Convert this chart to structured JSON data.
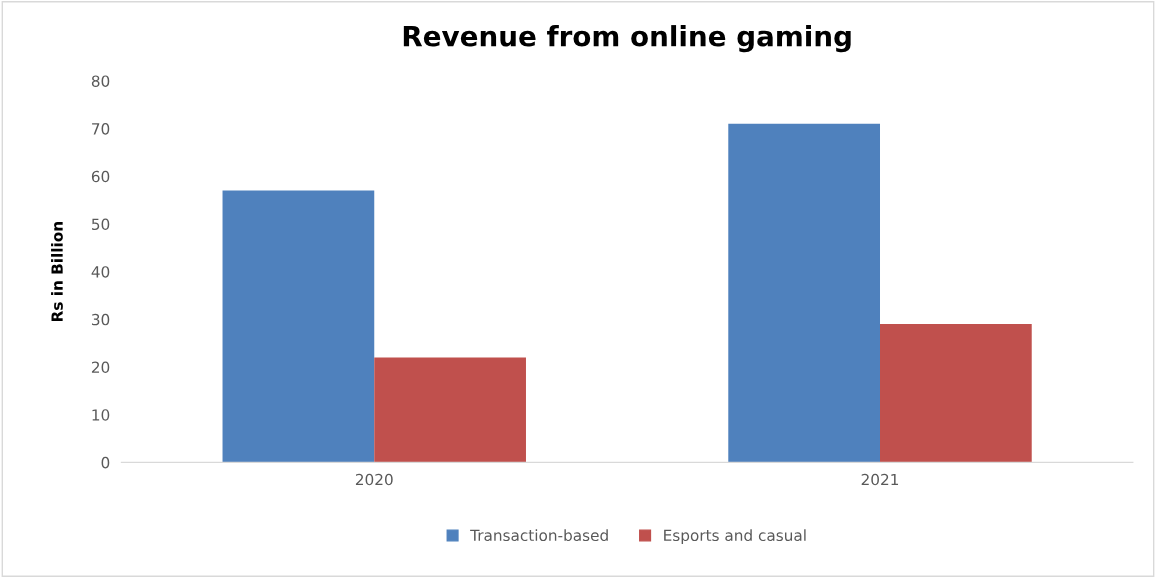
{
  "chart_data": {
    "type": "bar",
    "title": "Revenue from online gaming",
    "ylabel": "Rs in Billion",
    "categories": [
      "2020",
      "2021"
    ],
    "series": [
      {
        "name": "Transaction-based",
        "color": "#4f81bd",
        "values": [
          57,
          71
        ]
      },
      {
        "name": "Esports and casual",
        "color": "#c0504d",
        "values": [
          22,
          29
        ]
      }
    ],
    "ylim": [
      0,
      80
    ],
    "yticks": [
      0,
      10,
      20,
      30,
      40,
      50,
      60,
      70,
      80
    ],
    "grid": false,
    "legend": "bottom"
  }
}
